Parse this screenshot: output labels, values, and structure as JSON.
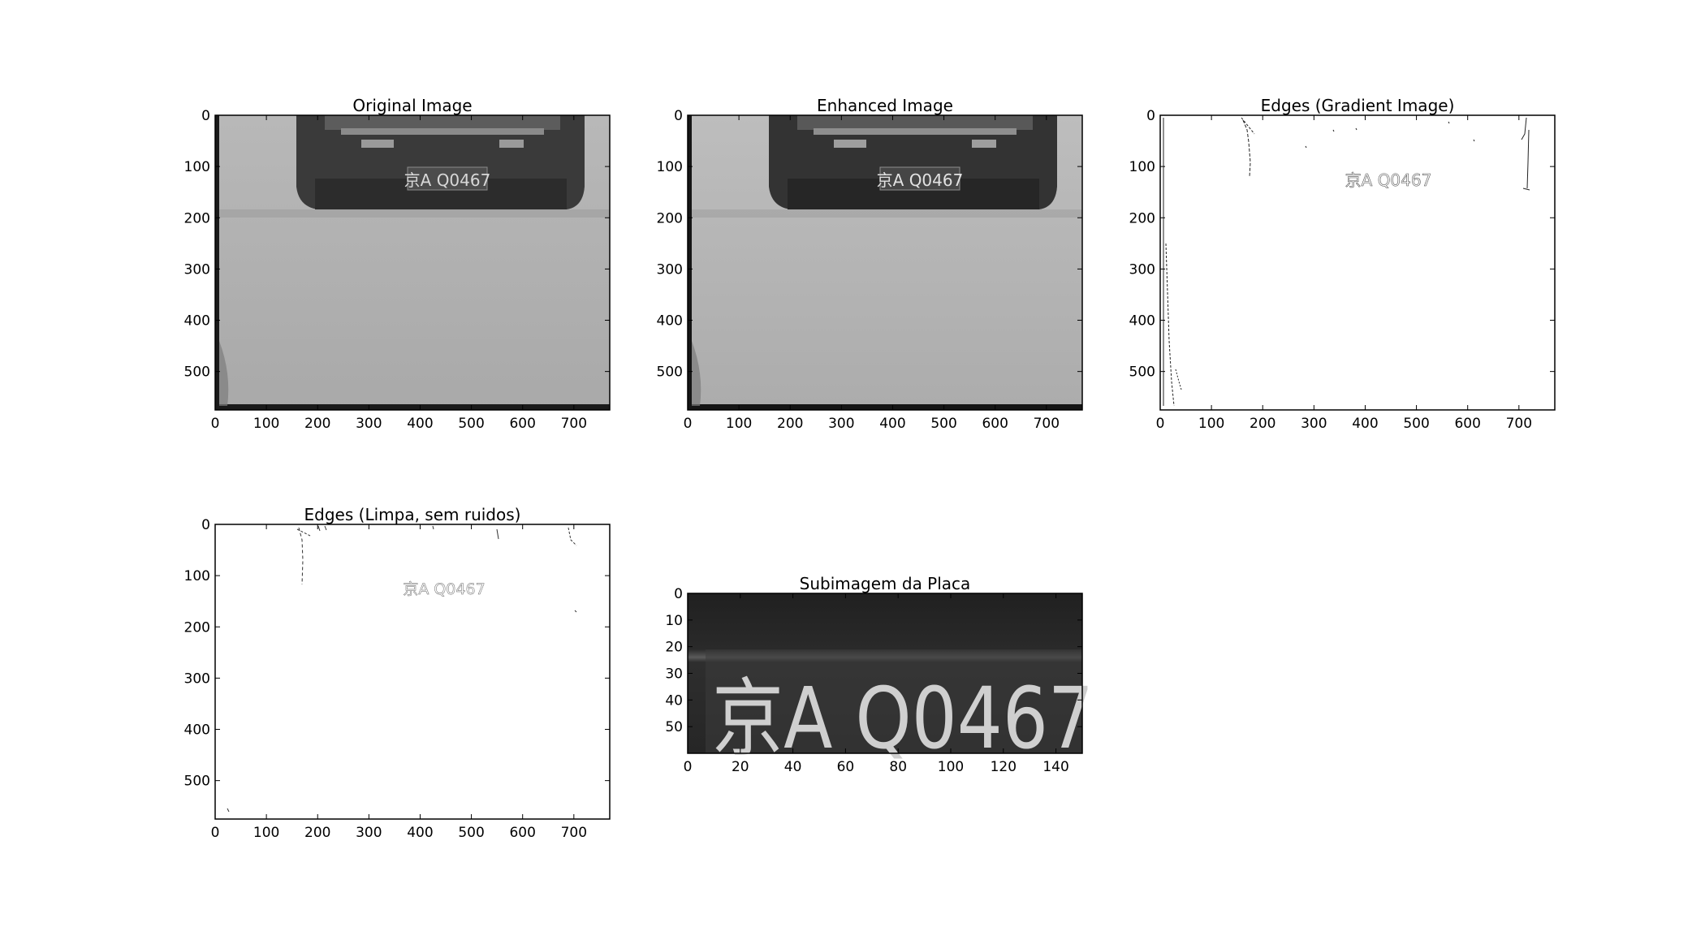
{
  "figure": {
    "background": "#ffffff",
    "axes_color": "#000000"
  },
  "chart_data": [
    {
      "type": "image",
      "id": "original",
      "title": "Original Image",
      "image_content": "grayscale road scene, rear of dark car with license plate",
      "plate_text": "京A Q0467",
      "xlim": [
        0,
        770
      ],
      "ylim": [
        575,
        0
      ],
      "xticks": [
        0,
        100,
        200,
        300,
        400,
        500,
        600,
        700
      ],
      "yticks": [
        0,
        100,
        200,
        300,
        400,
        500
      ]
    },
    {
      "type": "image",
      "id": "enhanced",
      "title": "Enhanced Image",
      "image_content": "contrast-enhanced grayscale road scene, rear of dark car with license plate",
      "plate_text": "京A Q0467",
      "xlim": [
        0,
        770
      ],
      "ylim": [
        575,
        0
      ],
      "xticks": [
        0,
        100,
        200,
        300,
        400,
        500,
        600,
        700
      ],
      "yticks": [
        0,
        100,
        200,
        300,
        400,
        500
      ]
    },
    {
      "type": "image",
      "id": "edges_gradient",
      "title": "Edges (Gradient Image)",
      "image_content": "sparse edge map on white background",
      "plate_text": "京A Q0467",
      "xlim": [
        0,
        770
      ],
      "ylim": [
        575,
        0
      ],
      "xticks": [
        0,
        100,
        200,
        300,
        400,
        500,
        600,
        700
      ],
      "yticks": [
        0,
        100,
        200,
        300,
        400,
        500
      ]
    },
    {
      "type": "image",
      "id": "edges_clean",
      "title": "Edges (Limpa, sem ruidos)",
      "image_content": "cleaned sparse edge map on white background",
      "plate_text": "京A Q0467",
      "xlim": [
        0,
        770
      ],
      "ylim": [
        575,
        0
      ],
      "xticks": [
        0,
        100,
        200,
        300,
        400,
        500,
        600,
        700
      ],
      "yticks": [
        0,
        100,
        200,
        300,
        400,
        500
      ]
    },
    {
      "type": "image",
      "id": "plate_crop",
      "title": "Subimagem da Placa",
      "image_content": "cropped license plate, light characters on dark plate",
      "plate_text": "京A Q0467",
      "xlim": [
        0,
        150
      ],
      "ylim": [
        60,
        0
      ],
      "xticks": [
        0,
        20,
        40,
        60,
        80,
        100,
        120,
        140
      ],
      "yticks": [
        0,
        10,
        20,
        30,
        40,
        50
      ]
    }
  ]
}
